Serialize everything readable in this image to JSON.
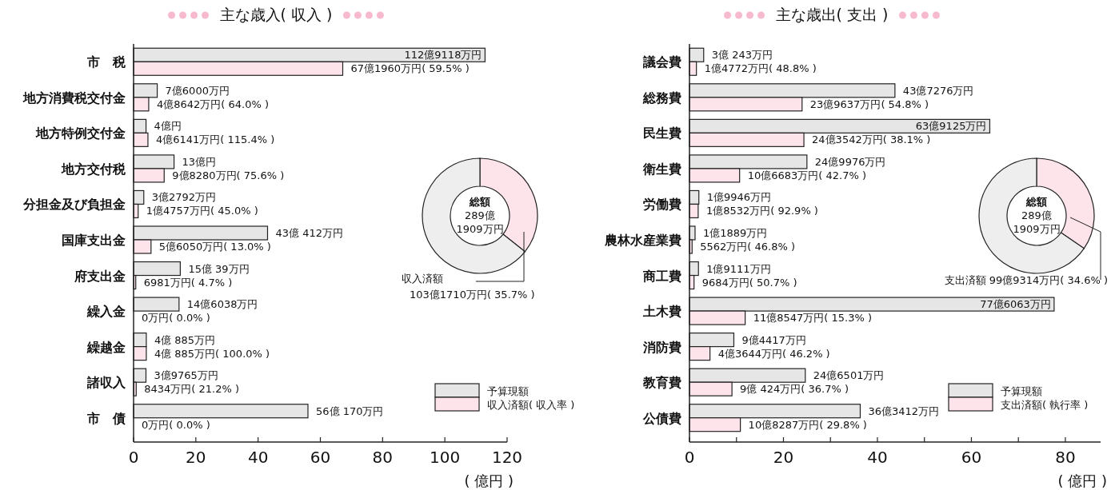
{
  "chart_data": [
    {
      "type": "bar",
      "orientation": "horizontal",
      "title": "主な歳入( 収入 )",
      "xlabel": "( 億円 )",
      "legend": "bottom right",
      "categories": [
        "市　税",
        "地方消費税交付金",
        "地方特例交付金",
        "地方交付税",
        "分担金及び負担金",
        "国庫支出金",
        "府支出金",
        "繰入金",
        "繰越金",
        "諸収入",
        "市　債"
      ],
      "xlim": [
        0,
        120
      ],
      "xticks": [
        0,
        20,
        40,
        60,
        80,
        100,
        120
      ],
      "series": [
        {
          "name": "予算現額",
          "color": "#e6e6e6",
          "values": [
            112.9118,
            7.6,
            4,
            13,
            3.2792,
            43.0412,
            15.0039,
            14.6038,
            4.0885,
            3.9765,
            56.017
          ]
        },
        {
          "name": "収入済額( 収入率 )",
          "color": "#fde3ea",
          "values": [
            67.196,
            4.8642,
            4.6141,
            9.828,
            1.4757,
            5.605,
            0.6981,
            0,
            4.0885,
            0.8434,
            0
          ]
        }
      ],
      "annotations": [
        {
          "text": "112億9118万円",
          "x": 112.9118,
          "y": "市　税"
        },
        {
          "text": "67億1960万円( 59.5% )",
          "x": 67.196,
          "y": "市　税"
        },
        {
          "text": "7億6000万円",
          "x": 7.6,
          "y": "地方消費税交付金"
        },
        {
          "text": "4億8642万円( 64.0% )",
          "x": 4.8642,
          "y": "地方消費税交付金"
        },
        {
          "text": "4億円",
          "x": 4,
          "y": "地方特例交付金"
        },
        {
          "text": "4億6141万円( 115.4% )",
          "x": 4.6141,
          "y": "地方特例交付金"
        },
        {
          "text": "13億円",
          "x": 13,
          "y": "地方交付税"
        },
        {
          "text": "9億8280万円( 75.6% )",
          "x": 9.828,
          "y": "地方交付税"
        },
        {
          "text": "3億2792万円",
          "x": 3.2792,
          "y": "分担金及び負担金"
        },
        {
          "text": "1億4757万円( 45.0% )",
          "x": 1.4757,
          "y": "分担金及び負担金"
        },
        {
          "text": "43億 412万円",
          "x": 43.0412,
          "y": "国庫支出金"
        },
        {
          "text": "5億6050万円( 13.0% )",
          "x": 5.605,
          "y": "国庫支出金"
        },
        {
          "text": "15億 39万円",
          "x": 15.0039,
          "y": "府支出金"
        },
        {
          "text": "6981万円( 4.7% )",
          "x": 0.6981,
          "y": "府支出金"
        },
        {
          "text": "14億6038万円",
          "x": 14.6038,
          "y": "繰入金"
        },
        {
          "text": "0万円( 0.0% )",
          "x": 0,
          "y": "繰入金"
        },
        {
          "text": "4億 885万円",
          "x": 4.0885,
          "y": "繰越金"
        },
        {
          "text": "4億 885万円( 100.0% )",
          "x": 4.0885,
          "y": "繰越金"
        },
        {
          "text": "3億9765万円",
          "x": 3.9765,
          "y": "諸収入"
        },
        {
          "text": "8434万円( 21.2% )",
          "x": 0.8434,
          "y": "諸収入"
        },
        {
          "text": "56億 170万円",
          "x": 56.017,
          "y": "市　債"
        },
        {
          "text": "0万円( 0.0% )",
          "x": 0,
          "y": "市　債"
        }
      ]
    },
    {
      "type": "donut",
      "categories": [
        "収入済額",
        null
      ],
      "values": [
        35.7,
        64.3
      ],
      "colors": [
        "#fde3ea",
        "#eeeeee"
      ],
      "value_labels": [
        "103億1710万円( 35.7% )",
        null
      ],
      "annotations": [
        "総額",
        "289億",
        "1909万円"
      ]
    },
    {
      "type": "bar",
      "orientation": "horizontal",
      "title": "主な歳出( 支出 )",
      "xlabel": "( 億円 )",
      "legend": "bottom right",
      "categories": [
        "議会費",
        "総務費",
        "民生費",
        "衛生費",
        "労働費",
        "農林水産業費",
        "商工費",
        "土木費",
        "消防費",
        "教育費",
        "公債費"
      ],
      "xlim": [
        0,
        87.5
      ],
      "xticks": [
        0,
        {
          "value": 10,
          "label": null
        },
        20,
        {
          "value": 30,
          "label": null
        },
        40,
        {
          "value": 50,
          "label": null
        },
        60,
        {
          "value": 70,
          "label": null
        },
        80
      ],
      "series": [
        {
          "name": "予算現額",
          "color": "#e6e6e6",
          "values": [
            3.0243,
            43.7276,
            63.9125,
            24.9976,
            1.9946,
            1.1889,
            1.9111,
            77.6063,
            9.4417,
            24.6501,
            36.3412
          ]
        },
        {
          "name": "支出済額( 執行率 )",
          "color": "#fde3ea",
          "values": [
            1.4772,
            23.9637,
            24.3542,
            10.6683,
            1.8532,
            0.5562,
            0.9684,
            11.8547,
            4.3644,
            9.0424,
            10.8287
          ]
        }
      ],
      "annotations": [
        {
          "text": "3億 243万円",
          "x": 3.0243,
          "y": "議会費"
        },
        {
          "text": "1億4772万円( 48.8% )",
          "x": 1.4772,
          "y": "議会費"
        },
        {
          "text": "43億7276万円",
          "x": 43.7276,
          "y": "総務費"
        },
        {
          "text": "23億9637万円( 54.8% )",
          "x": 23.9637,
          "y": "総務費"
        },
        {
          "text": "63億9125万円",
          "x": 63.9125,
          "y": "民生費"
        },
        {
          "text": "24億3542万円( 38.1% )",
          "x": 24.3542,
          "y": "民生費"
        },
        {
          "text": "24億9976万円",
          "x": 24.9976,
          "y": "衛生費"
        },
        {
          "text": "10億6683万円( 42.7% )",
          "x": 10.6683,
          "y": "衛生費"
        },
        {
          "text": "1億9946万円",
          "x": 1.9946,
          "y": "労働費"
        },
        {
          "text": "1億8532万円( 92.9% )",
          "x": 1.8532,
          "y": "労働費"
        },
        {
          "text": "1億1889万円",
          "x": 1.1889,
          "y": "農林水産業費"
        },
        {
          "text": "5562万円( 46.8% )",
          "x": 0.5562,
          "y": "農林水産業費"
        },
        {
          "text": "1億9111万円",
          "x": 1.9111,
          "y": "商工費"
        },
        {
          "text": "9684万円( 50.7% )",
          "x": 0.9684,
          "y": "商工費"
        },
        {
          "text": "77億6063万円",
          "x": 77.6063,
          "y": "土木費"
        },
        {
          "text": "11億8547万円( 15.3% )",
          "x": 11.8547,
          "y": "土木費"
        },
        {
          "text": "9億4417万円",
          "x": 9.4417,
          "y": "消防費"
        },
        {
          "text": "4億3644万円( 46.2% )",
          "x": 4.3644,
          "y": "消防費"
        },
        {
          "text": "24億6501万円",
          "x": 24.6501,
          "y": "教育費"
        },
        {
          "text": "9億 424万円( 36.7% )",
          "x": 9.0424,
          "y": "教育費"
        },
        {
          "text": "36億3412万円",
          "x": 36.3412,
          "y": "公債費"
        },
        {
          "text": "10億8287万円( 29.8% )",
          "x": 10.8287,
          "y": "公債費"
        }
      ]
    },
    {
      "type": "donut",
      "categories": [
        "支出済額",
        null
      ],
      "values": [
        34.6,
        65.4
      ],
      "colors": [
        "#fde3ea",
        "#eeeeee"
      ],
      "value_labels": [
        "99億9314万円( 34.6% )",
        null
      ],
      "annotations": [
        "総額",
        "289億",
        "1909万円"
      ]
    }
  ]
}
